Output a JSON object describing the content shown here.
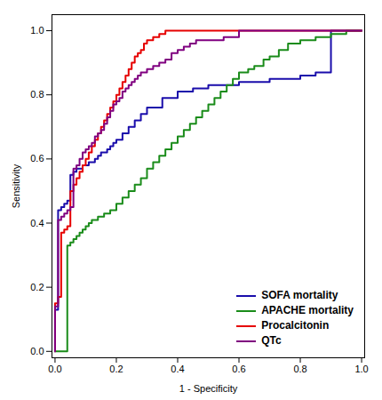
{
  "chart_data": {
    "type": "line",
    "xlabel": "1 - Specificity",
    "ylabel": "Sensitivity",
    "xlim": [
      -0.01,
      1.01
    ],
    "ylim": [
      -0.02,
      1.05
    ],
    "xticks": [
      {
        "value": 0,
        "label": "0.0"
      },
      0.2,
      0.4,
      0.6,
      0.8,
      {
        "value": 1,
        "label": "1.0"
      }
    ],
    "yticks": [
      {
        "value": 0,
        "label": "0.0"
      },
      0.2,
      0.4,
      0.6,
      0.8,
      {
        "value": 1,
        "label": "1.0"
      }
    ],
    "grid": false,
    "legend": "lower right",
    "line_style": "steps-post",
    "series": [
      {
        "name": "SOFA mortality",
        "color": "#1a0dab",
        "x": [
          0.0,
          0.0,
          0.01,
          0.01,
          0.02,
          0.03,
          0.04,
          0.05,
          0.06,
          0.07,
          0.08,
          0.09,
          0.1,
          0.11,
          0.12,
          0.13,
          0.14,
          0.15,
          0.16,
          0.17,
          0.18,
          0.19,
          0.2,
          0.22,
          0.24,
          0.26,
          0.28,
          0.3,
          0.35,
          0.4,
          0.45,
          0.5,
          0.55,
          0.6,
          0.65,
          0.7,
          0.75,
          0.8,
          0.85,
          0.9,
          0.9,
          1.0
        ],
        "values": [
          0.0,
          0.13,
          0.13,
          0.44,
          0.45,
          0.46,
          0.47,
          0.55,
          0.56,
          0.57,
          0.57,
          0.58,
          0.58,
          0.59,
          0.59,
          0.6,
          0.61,
          0.62,
          0.62,
          0.63,
          0.64,
          0.65,
          0.66,
          0.68,
          0.7,
          0.72,
          0.74,
          0.76,
          0.79,
          0.81,
          0.82,
          0.83,
          0.83,
          0.84,
          0.84,
          0.85,
          0.85,
          0.86,
          0.87,
          0.87,
          1.0,
          1.0
        ]
      },
      {
        "name": "APACHE mortality",
        "color": "#1a8c1a",
        "x": [
          0.0,
          0.0,
          0.04,
          0.04,
          0.05,
          0.06,
          0.07,
          0.08,
          0.09,
          0.1,
          0.11,
          0.12,
          0.14,
          0.16,
          0.18,
          0.2,
          0.22,
          0.24,
          0.26,
          0.28,
          0.3,
          0.32,
          0.34,
          0.36,
          0.38,
          0.4,
          0.42,
          0.44,
          0.46,
          0.48,
          0.5,
          0.52,
          0.54,
          0.56,
          0.58,
          0.6,
          0.63,
          0.65,
          0.68,
          0.7,
          0.73,
          0.76,
          0.8,
          0.85,
          0.9,
          0.95,
          1.0
        ],
        "values": [
          0.0,
          0.0,
          0.0,
          0.33,
          0.34,
          0.35,
          0.36,
          0.37,
          0.38,
          0.39,
          0.4,
          0.41,
          0.42,
          0.43,
          0.44,
          0.46,
          0.48,
          0.5,
          0.52,
          0.54,
          0.57,
          0.59,
          0.61,
          0.63,
          0.65,
          0.67,
          0.69,
          0.71,
          0.73,
          0.75,
          0.77,
          0.79,
          0.81,
          0.83,
          0.85,
          0.87,
          0.88,
          0.89,
          0.91,
          0.92,
          0.94,
          0.96,
          0.97,
          0.98,
          0.99,
          1.0,
          1.0
        ]
      },
      {
        "name": "Procalcitonin",
        "color": "#e60000",
        "x": [
          0.0,
          0.0,
          0.01,
          0.01,
          0.02,
          0.02,
          0.03,
          0.04,
          0.05,
          0.06,
          0.07,
          0.08,
          0.09,
          0.1,
          0.11,
          0.12,
          0.13,
          0.14,
          0.15,
          0.16,
          0.17,
          0.18,
          0.19,
          0.2,
          0.21,
          0.22,
          0.23,
          0.24,
          0.25,
          0.26,
          0.27,
          0.28,
          0.29,
          0.3,
          0.32,
          0.34,
          0.36,
          0.38,
          0.4,
          0.5,
          0.6,
          1.0
        ],
        "values": [
          0.0,
          0.15,
          0.15,
          0.17,
          0.17,
          0.37,
          0.38,
          0.39,
          0.5,
          0.52,
          0.54,
          0.56,
          0.58,
          0.6,
          0.62,
          0.64,
          0.66,
          0.68,
          0.7,
          0.72,
          0.74,
          0.76,
          0.78,
          0.8,
          0.82,
          0.84,
          0.86,
          0.88,
          0.9,
          0.92,
          0.93,
          0.94,
          0.96,
          0.97,
          0.98,
          0.99,
          1.0,
          1.0,
          1.0,
          1.0,
          1.0,
          1.0
        ]
      },
      {
        "name": "QTc",
        "color": "#800080",
        "x": [
          0.0,
          0.0,
          0.01,
          0.01,
          0.02,
          0.03,
          0.04,
          0.05,
          0.06,
          0.07,
          0.08,
          0.09,
          0.1,
          0.11,
          0.12,
          0.13,
          0.14,
          0.15,
          0.16,
          0.17,
          0.18,
          0.19,
          0.2,
          0.21,
          0.22,
          0.23,
          0.24,
          0.25,
          0.26,
          0.27,
          0.28,
          0.3,
          0.32,
          0.34,
          0.36,
          0.38,
          0.4,
          0.42,
          0.44,
          0.46,
          0.48,
          0.5,
          0.55,
          0.6,
          1.0
        ],
        "values": [
          0.0,
          0.14,
          0.14,
          0.41,
          0.42,
          0.43,
          0.44,
          0.45,
          0.57,
          0.58,
          0.6,
          0.62,
          0.63,
          0.64,
          0.65,
          0.67,
          0.68,
          0.69,
          0.71,
          0.73,
          0.75,
          0.77,
          0.78,
          0.79,
          0.81,
          0.82,
          0.83,
          0.84,
          0.85,
          0.86,
          0.87,
          0.88,
          0.89,
          0.9,
          0.91,
          0.93,
          0.94,
          0.95,
          0.96,
          0.97,
          0.97,
          0.97,
          0.98,
          1.0,
          1.0
        ]
      }
    ]
  }
}
